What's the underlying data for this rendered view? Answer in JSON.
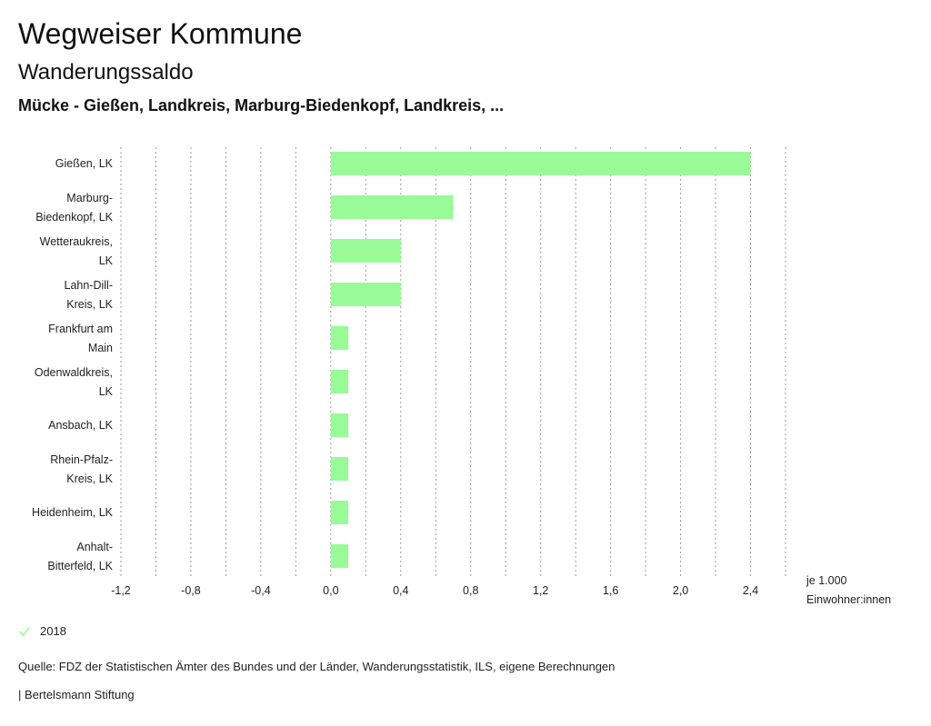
{
  "header": {
    "title": "Wegweiser Kommune",
    "subtitle": "Wanderungssaldo",
    "region": "Mücke - Gießen, Landkreis, Marburg-Biedenkopf, Landkreis, ..."
  },
  "chart_data": {
    "type": "bar",
    "orientation": "horizontal",
    "categories": [
      [
        "Gießen, LK"
      ],
      [
        "Marburg-",
        "Biedenkopf, LK"
      ],
      [
        "Wetteraukreis,",
        "LK"
      ],
      [
        "Lahn-Dill-",
        "Kreis, LK"
      ],
      [
        "Frankfurt am",
        "Main"
      ],
      [
        "Odenwaldkreis,",
        "LK"
      ],
      [
        "Ansbach, LK"
      ],
      [
        "Rhein-Pfalz-",
        "Kreis, LK"
      ],
      [
        "Heidenheim, LK"
      ],
      [
        "Anhalt-",
        "Bitterfeld, LK"
      ]
    ],
    "series": [
      {
        "name": "2018",
        "values": [
          2.4,
          0.7,
          0.4,
          0.4,
          0.1,
          0.1,
          0.1,
          0.1,
          0.1,
          0.1
        ]
      }
    ],
    "xlim": [
      -1.2,
      2.6
    ],
    "xticks": [
      -1.2,
      -0.8,
      -0.4,
      0.0,
      0.4,
      0.8,
      1.2,
      1.6,
      2.0,
      2.4
    ],
    "xtick_labels": [
      "-1,2",
      "-0,8",
      "-0,4",
      "0,0",
      "0,4",
      "0,8",
      "1,2",
      "1,6",
      "2,0",
      "2,4"
    ],
    "gridlines_every": 0.2,
    "unit_label": [
      "je 1.000",
      "Einwohner:innen"
    ],
    "grid": true
  },
  "colors": {
    "bar": "#98fb98",
    "grid": "#9a9a9a",
    "legend_check": "#98fb98"
  },
  "legend": {
    "label": "2018",
    "icon": "check-icon"
  },
  "footer": {
    "source": "Quelle: FDZ der Statistischen Ämter des Bundes und der Länder, Wanderungsstatistik, ILS, eigene Berechnungen",
    "brand": "| Bertelsmann Stiftung"
  }
}
